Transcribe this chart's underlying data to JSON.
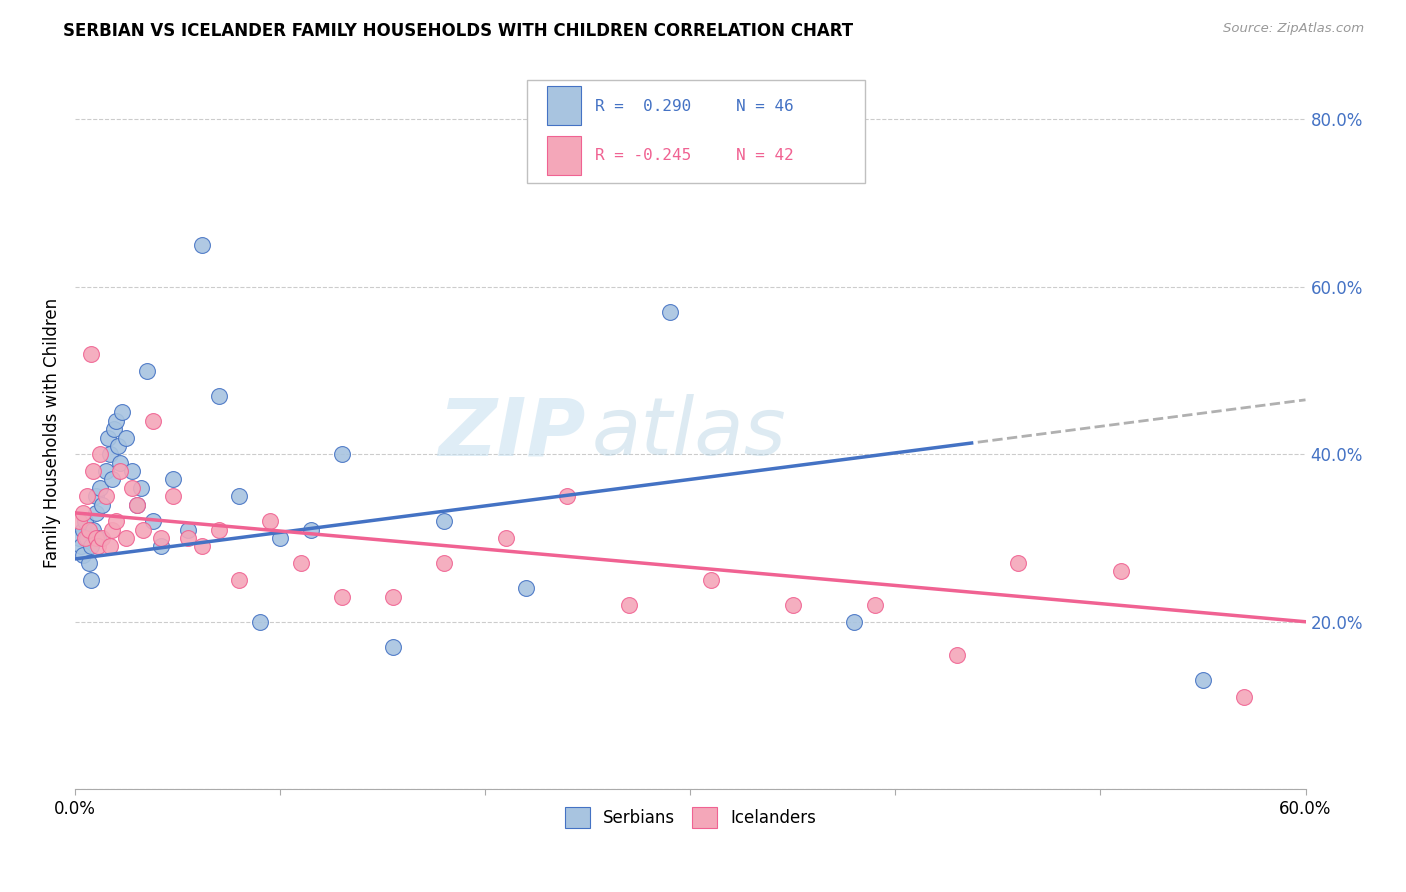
{
  "title": "SERBIAN VS ICELANDER FAMILY HOUSEHOLDS WITH CHILDREN CORRELATION CHART",
  "source": "Source: ZipAtlas.com",
  "ylabel": "Family Households with Children",
  "x_min": 0.0,
  "x_max": 0.6,
  "y_min": 0.0,
  "y_max": 0.85,
  "x_ticks": [
    0.0,
    0.1,
    0.2,
    0.3,
    0.4,
    0.5,
    0.6
  ],
  "y_ticks": [
    0.0,
    0.2,
    0.4,
    0.6,
    0.8
  ],
  "y_tick_labels": [
    "",
    "20.0%",
    "40.0%",
    "60.0%",
    "80.0%"
  ],
  "x_tick_labels": [
    "0.0%",
    "",
    "",
    "",
    "",
    "",
    "60.0%"
  ],
  "serbian_color": "#a8c4e0",
  "icelander_color": "#f4a7b9",
  "serbian_line_color": "#4472c4",
  "icelander_line_color": "#f06292",
  "serbian_r": 0.29,
  "serbian_n": 46,
  "icelander_r": -0.245,
  "icelander_n": 42,
  "legend_serbian_label": "Serbians",
  "legend_icelander_label": "Icelanders",
  "watermark_zip": "ZIP",
  "watermark_atlas": "atlas",
  "serbian_x": [
    0.002,
    0.003,
    0.004,
    0.004,
    0.005,
    0.006,
    0.007,
    0.008,
    0.008,
    0.009,
    0.01,
    0.01,
    0.011,
    0.012,
    0.013,
    0.015,
    0.016,
    0.017,
    0.018,
    0.019,
    0.02,
    0.021,
    0.022,
    0.023,
    0.025,
    0.028,
    0.03,
    0.032,
    0.035,
    0.038,
    0.042,
    0.048,
    0.055,
    0.062,
    0.07,
    0.08,
    0.09,
    0.1,
    0.115,
    0.13,
    0.155,
    0.18,
    0.22,
    0.29,
    0.38,
    0.55
  ],
  "serbian_y": [
    0.3,
    0.29,
    0.31,
    0.28,
    0.32,
    0.3,
    0.27,
    0.25,
    0.29,
    0.31,
    0.33,
    0.35,
    0.3,
    0.36,
    0.34,
    0.38,
    0.42,
    0.4,
    0.37,
    0.43,
    0.44,
    0.41,
    0.39,
    0.45,
    0.42,
    0.38,
    0.34,
    0.36,
    0.5,
    0.32,
    0.29,
    0.37,
    0.31,
    0.65,
    0.47,
    0.35,
    0.2,
    0.3,
    0.31,
    0.4,
    0.17,
    0.32,
    0.24,
    0.57,
    0.2,
    0.13
  ],
  "icelander_x": [
    0.002,
    0.004,
    0.005,
    0.006,
    0.007,
    0.008,
    0.009,
    0.01,
    0.011,
    0.012,
    0.013,
    0.015,
    0.017,
    0.018,
    0.02,
    0.022,
    0.025,
    0.028,
    0.03,
    0.033,
    0.038,
    0.042,
    0.048,
    0.055,
    0.062,
    0.07,
    0.08,
    0.095,
    0.11,
    0.13,
    0.155,
    0.18,
    0.21,
    0.24,
    0.27,
    0.31,
    0.35,
    0.39,
    0.43,
    0.46,
    0.51,
    0.57
  ],
  "icelander_y": [
    0.32,
    0.33,
    0.3,
    0.35,
    0.31,
    0.52,
    0.38,
    0.3,
    0.29,
    0.4,
    0.3,
    0.35,
    0.29,
    0.31,
    0.32,
    0.38,
    0.3,
    0.36,
    0.34,
    0.31,
    0.44,
    0.3,
    0.35,
    0.3,
    0.29,
    0.31,
    0.25,
    0.32,
    0.27,
    0.23,
    0.23,
    0.27,
    0.3,
    0.35,
    0.22,
    0.25,
    0.22,
    0.22,
    0.16,
    0.27,
    0.26,
    0.11
  ]
}
